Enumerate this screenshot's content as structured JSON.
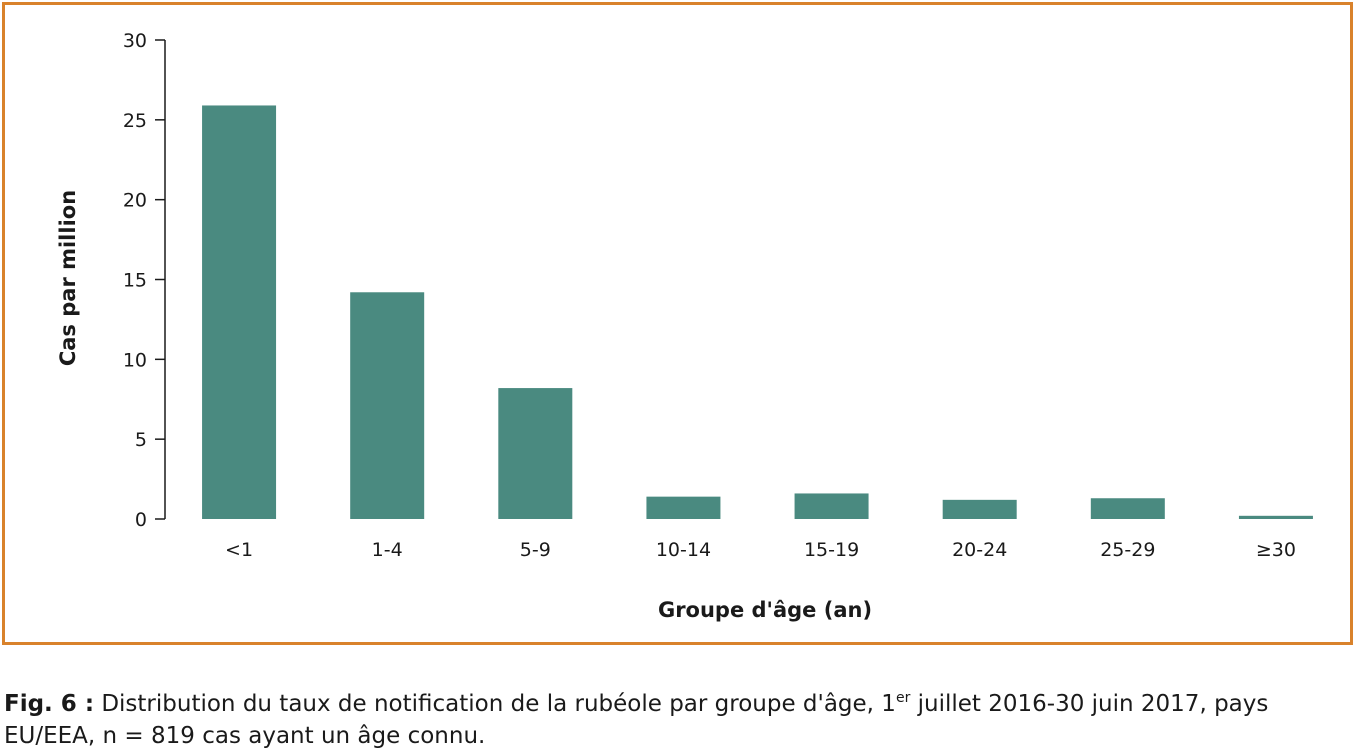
{
  "chart_data": {
    "type": "bar",
    "categories": [
      "<1",
      "1-4",
      "5-9",
      "10-14",
      "15-19",
      "20-24",
      "25-29",
      "≥30"
    ],
    "values": [
      25.9,
      14.2,
      8.2,
      1.4,
      1.6,
      1.2,
      1.3,
      0.2
    ],
    "xlabel": "Groupe d'âge (an)",
    "ylabel": "Cas par million",
    "ylim": [
      0,
      30
    ],
    "yticks": [
      0,
      5,
      10,
      15,
      20,
      25,
      30
    ],
    "grid": false,
    "legend": "none",
    "bar_color": "#4a8a80"
  },
  "caption": {
    "label": "Fig. 6 :",
    "text_before_sup": " Distribution du taux de notification de la rubéole par groupe d'âge, 1",
    "sup": "er",
    "text_after_sup": " juillet 2016-30 juin 2017, pays EU/EEA, n = 819 cas ayant un âge connu."
  },
  "colors": {
    "frame": "#d9822b",
    "bars": "#4a8a80"
  }
}
